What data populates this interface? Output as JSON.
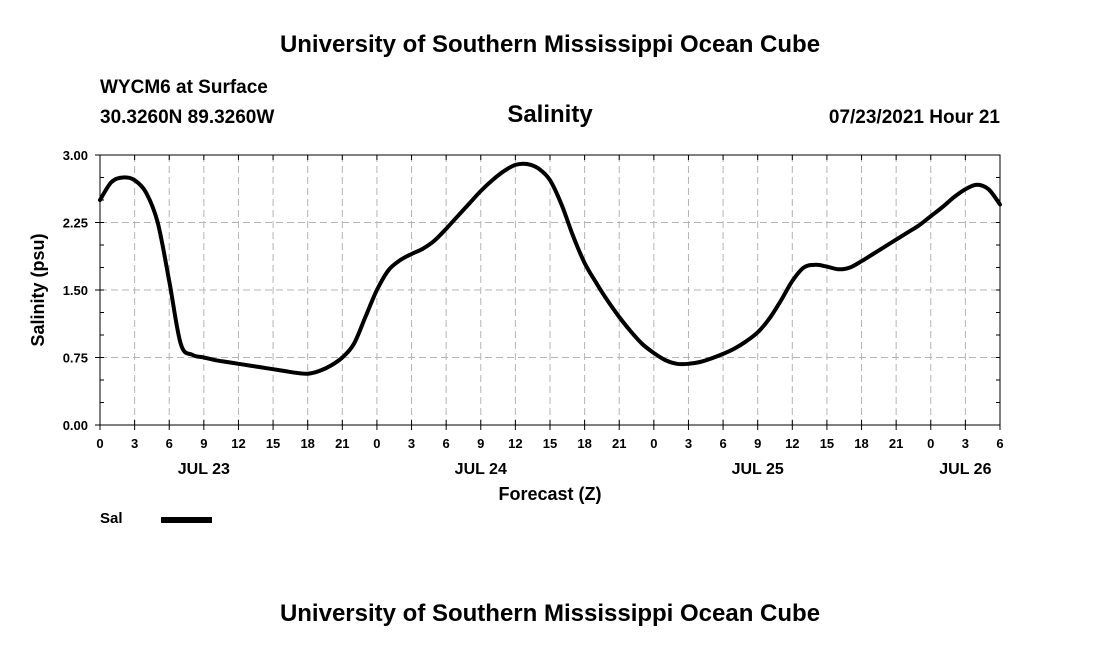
{
  "header": {
    "title_top": "University of Southern Mississippi Ocean Cube",
    "title_bottom": "University of Southern Mississippi Ocean Cube",
    "station": "WYCM6 at Surface",
    "coords": "30.3260N  89.3260W",
    "datetime": "07/23/2021 Hour 21"
  },
  "legend": {
    "label": "Sal"
  },
  "colors": {
    "line": "#000000",
    "grid": "#b4b4b4",
    "axis": "#000000"
  },
  "chart_data": {
    "type": "line",
    "title": "Salinity",
    "xlabel": "Forecast (Z)",
    "ylabel": "Salinity (psu)",
    "ylim": [
      0,
      3
    ],
    "xlim_hours": [
      0,
      78
    ],
    "yticks": [
      "0.00",
      "0.75",
      "1.50",
      "2.25",
      "3.00"
    ],
    "xtick_labels": [
      "0",
      "3",
      "6",
      "9",
      "12",
      "15",
      "18",
      "21",
      "0",
      "3",
      "6",
      "9",
      "12",
      "15",
      "18",
      "21",
      "0",
      "3",
      "6",
      "9",
      "12",
      "15",
      "18",
      "21",
      "0",
      "3",
      "6"
    ],
    "date_labels": [
      {
        "label": "JUL 23",
        "hour": 9
      },
      {
        "label": "JUL 24",
        "hour": 33
      },
      {
        "label": "JUL 25",
        "hour": 57
      },
      {
        "label": "JUL 26",
        "hour": 75
      }
    ],
    "grid": true,
    "series": [
      {
        "name": "Sal",
        "x": [
          0,
          1,
          2,
          3,
          4,
          5,
          6,
          7,
          8,
          9,
          10,
          11,
          12,
          13,
          14,
          15,
          16,
          17,
          18,
          19,
          20,
          21,
          22,
          23,
          24,
          25,
          26,
          27,
          28,
          29,
          30,
          31,
          32,
          33,
          34,
          35,
          36,
          37,
          38,
          39,
          40,
          41,
          42,
          43,
          44,
          45,
          46,
          47,
          48,
          49,
          50,
          51,
          52,
          53,
          54,
          55,
          56,
          57,
          58,
          59,
          60,
          61,
          62,
          63,
          64,
          65,
          66,
          67,
          68,
          69,
          70,
          71,
          72,
          73,
          74,
          75,
          76,
          77,
          78
        ],
        "y": [
          2.5,
          2.7,
          2.75,
          2.72,
          2.58,
          2.25,
          1.6,
          0.9,
          0.78,
          0.75,
          0.72,
          0.7,
          0.68,
          0.66,
          0.64,
          0.62,
          0.6,
          0.58,
          0.57,
          0.6,
          0.66,
          0.75,
          0.9,
          1.2,
          1.5,
          1.72,
          1.83,
          1.9,
          1.96,
          2.05,
          2.18,
          2.32,
          2.46,
          2.6,
          2.72,
          2.82,
          2.89,
          2.9,
          2.85,
          2.72,
          2.45,
          2.1,
          1.8,
          1.58,
          1.38,
          1.2,
          1.04,
          0.9,
          0.8,
          0.72,
          0.68,
          0.68,
          0.7,
          0.74,
          0.79,
          0.85,
          0.93,
          1.03,
          1.18,
          1.38,
          1.6,
          1.75,
          1.78,
          1.76,
          1.73,
          1.75,
          1.82,
          1.9,
          1.98,
          2.06,
          2.14,
          2.22,
          2.32,
          2.42,
          2.53,
          2.62,
          2.67,
          2.62,
          2.45
        ]
      }
    ]
  }
}
